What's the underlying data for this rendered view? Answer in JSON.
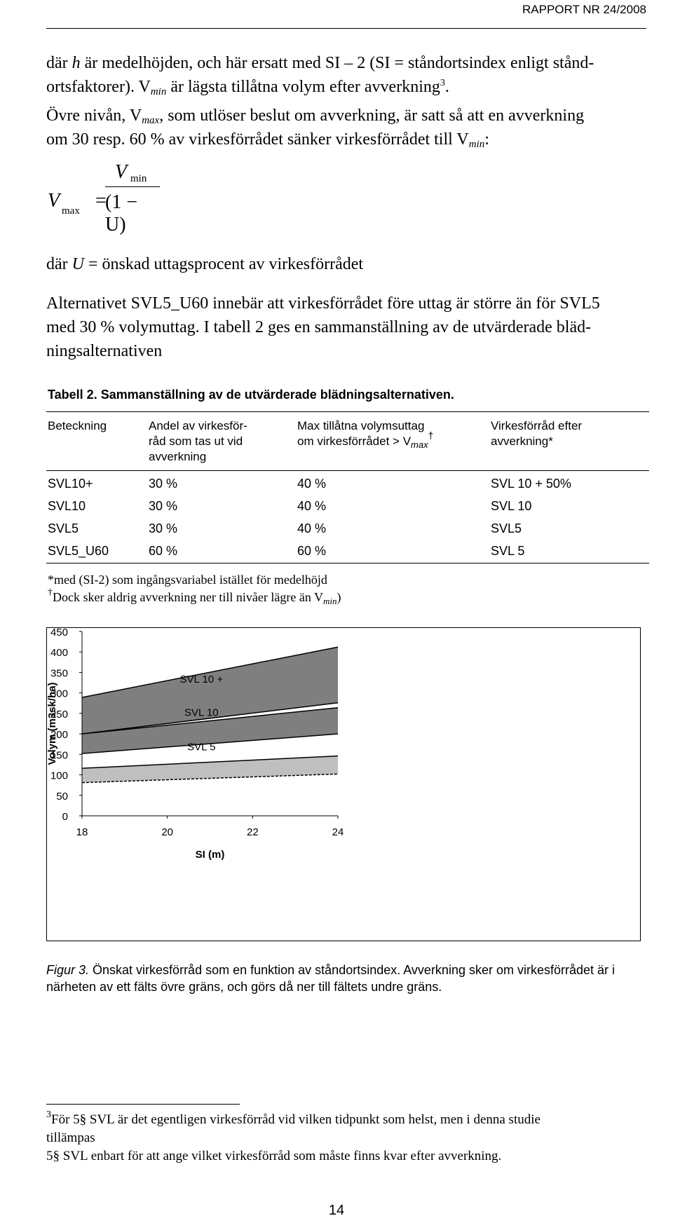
{
  "header": {
    "title": "RAPPORT NR 24/2008"
  },
  "intro": {
    "p1_a": "där ",
    "p1_h": "h",
    "p1_b": " är medelhöjden, och här ersatt med SI – 2 (SI = ståndortsindex enligt stånd-",
    "p1_c": "ortsfaktorer). V",
    "p1_min": "min",
    "p1_d": " är lägsta tillåtna volym efter avverkning",
    "p1_sup": "3",
    "p1_e": ".",
    "p2_a": "Övre nivån, V",
    "p2_max": "max",
    "p2_b": ", som utlöser beslut om avverkning, är satt så att en avverkning",
    "p2_c": "om 30 resp. 60 % av virkesförrådet sänker virkesförrådet till V",
    "p2_min": "min",
    "p2_d": ":"
  },
  "formula": {
    "lhs": "V",
    "lhs_sub": "max",
    "equals": "=",
    "num": "V",
    "num_sub": "min",
    "den": "(1 − U)"
  },
  "definition": {
    "a": "där ",
    "u": "U",
    "b": " = önskad uttagsprocent av virkesförrådet"
  },
  "paragraph2": {
    "line1": "Alternativet SVL5_U60 innebär att virkesförrådet före uttag är större än för SVL5",
    "line2": "med 30 % volymuttag. I tabell 2 ges en sammanställning av de utvärderade bläd-",
    "line3": "ningsalternativen"
  },
  "table": {
    "caption": "Tabell 2. Sammanställning av de utvärderade blädningsalternativen.",
    "headers": {
      "c1": "Beteckning",
      "c2_l1": "Andel av virkesför-",
      "c2_l2": "råd som tas ut vid",
      "c2_l3": "avverkning",
      "c3_l1": "Max tillåtna volymsuttag",
      "c3_l2a": "om virkesförrådet > V",
      "c3_sub": "max",
      "c3_sup": "†",
      "c4_l1": "Virkesförråd efter",
      "c4_l2": "avverkning*"
    },
    "rows": [
      [
        "SVL10+",
        "30 %",
        "40 %",
        "SVL 10 + 50%"
      ],
      [
        "SVL10",
        "30 %",
        "40 %",
        "SVL 10"
      ],
      [
        "SVL5",
        "30 %",
        "40 %",
        "SVL5"
      ],
      [
        "SVL5_U60",
        "60 %",
        "60 %",
        "SVL 5"
      ]
    ]
  },
  "notes": {
    "n1": "*med (SI-2) som ingångsvariabel istället för medelhöjd",
    "n2_dag": "†",
    "n2_a": "Dock sker aldrig avverkning ner till nivåer lägre än V",
    "n2_sub": "min",
    "n2_b": ")"
  },
  "chart_data": {
    "type": "area",
    "xlabel": "SI (m)",
    "ylabel": "Volym (m3sk/ha)",
    "xlim": [
      18,
      24
    ],
    "ylim": [
      0,
      450
    ],
    "x_ticks": [
      "18",
      "20",
      "22",
      "24"
    ],
    "y_ticks": [
      "0",
      "50",
      "100",
      "150",
      "200",
      "250",
      "300",
      "350",
      "400",
      "450"
    ],
    "grid": false,
    "bands": [
      {
        "name": "SVL 10 +",
        "x": [
          18,
          24
        ],
        "lower": [
          200,
          276
        ],
        "upper": [
          289,
          412
        ],
        "fill": "#7f7f7f"
      },
      {
        "name": "SVL 10",
        "x": [
          18,
          24
        ],
        "lower": [
          152,
          200
        ],
        "upper": [
          200,
          264
        ],
        "fill": "#7f7f7f"
      },
      {
        "name": "SVL 5",
        "x": [
          18,
          24
        ],
        "lower": [
          81,
          102
        ],
        "upper": [
          116,
          146
        ],
        "fill": "#bfbfbf"
      }
    ],
    "band_labels": [
      "SVL 10 +",
      "SVL 10",
      "SVL 5"
    ]
  },
  "figure_caption": {
    "label": "Figur 3.",
    "text": " Önskat virkesförråd som en funktion av ståndortsindex. Avverkning sker om virkesförrådet är i närheten av ett fälts övre gräns, och görs då ner till fältets undre gräns."
  },
  "footnote": {
    "sup": "3",
    "line1": "För 5§ SVL är det egentligen virkesförråd vid vilken tidpunkt som helst, men i denna studie",
    "line2": "tillämpas",
    "line3": "5§ SVL enbart för att ange vilket virkesförråd som måste finns kvar efter avverkning."
  },
  "page_number": "14"
}
